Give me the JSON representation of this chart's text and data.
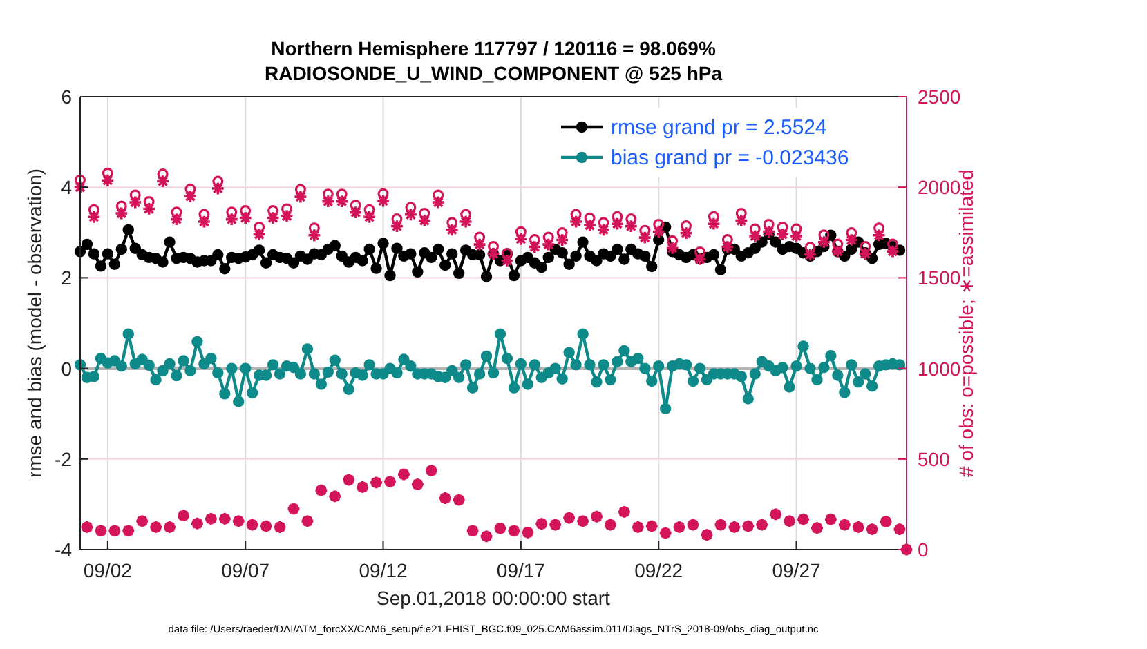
{
  "chart_data": {
    "type": "line",
    "title": "Northern Hemisphere 117797 / 120116 = 98.069%",
    "subtitle": "RADIOSONDE_U_WIND_COMPONENT @ 525 hPa",
    "xlabel": "Sep.01,2018 00:00:00 start",
    "ylabel": "rmse and bias (model - observation)",
    "y2label": "# of obs: o=possible; ∗=assimilated",
    "annotations": [
      "data file: /Users/raeder/DAI/ATM_forcXX/CAM6_setup/f.e21.FHIST_BGC.f09_025.CAM6assim.011/Diags_NTrS_2018-09/obs_diag_output.nc"
    ],
    "x": [
      "2018-09-01T00:00",
      "2018-09-01T06:00",
      "2018-09-01T12:00",
      "2018-09-01T18:00",
      "2018-09-02T00:00",
      "2018-09-02T06:00",
      "2018-09-02T12:00",
      "2018-09-02T18:00",
      "2018-09-03T00:00",
      "2018-09-03T06:00",
      "2018-09-03T12:00",
      "2018-09-03T18:00",
      "2018-09-04T00:00",
      "2018-09-04T06:00",
      "2018-09-04T12:00",
      "2018-09-04T18:00",
      "2018-09-05T00:00",
      "2018-09-05T06:00",
      "2018-09-05T12:00",
      "2018-09-05T18:00",
      "2018-09-06T00:00",
      "2018-09-06T06:00",
      "2018-09-06T12:00",
      "2018-09-06T18:00",
      "2018-09-07T00:00",
      "2018-09-07T06:00",
      "2018-09-07T12:00",
      "2018-09-07T18:00",
      "2018-09-08T00:00",
      "2018-09-08T06:00",
      "2018-09-08T12:00",
      "2018-09-08T18:00",
      "2018-09-09T00:00",
      "2018-09-09T06:00",
      "2018-09-09T12:00",
      "2018-09-09T18:00",
      "2018-09-10T00:00",
      "2018-09-10T06:00",
      "2018-09-10T12:00",
      "2018-09-10T18:00",
      "2018-09-11T00:00",
      "2018-09-11T06:00",
      "2018-09-11T12:00",
      "2018-09-11T18:00",
      "2018-09-12T00:00",
      "2018-09-12T06:00",
      "2018-09-12T12:00",
      "2018-09-12T18:00",
      "2018-09-13T00:00",
      "2018-09-13T06:00",
      "2018-09-13T12:00",
      "2018-09-13T18:00",
      "2018-09-14T00:00",
      "2018-09-14T06:00",
      "2018-09-14T12:00",
      "2018-09-14T18:00",
      "2018-09-15T00:00",
      "2018-09-15T06:00",
      "2018-09-15T12:00",
      "2018-09-15T18:00",
      "2018-09-16T00:00",
      "2018-09-16T06:00",
      "2018-09-16T12:00",
      "2018-09-16T18:00",
      "2018-09-17T00:00",
      "2018-09-17T06:00",
      "2018-09-17T12:00",
      "2018-09-17T18:00",
      "2018-09-18T00:00",
      "2018-09-18T06:00",
      "2018-09-18T12:00",
      "2018-09-18T18:00",
      "2018-09-19T00:00",
      "2018-09-19T06:00",
      "2018-09-19T12:00",
      "2018-09-19T18:00",
      "2018-09-20T00:00",
      "2018-09-20T06:00",
      "2018-09-20T12:00",
      "2018-09-20T18:00",
      "2018-09-21T00:00",
      "2018-09-21T06:00",
      "2018-09-21T12:00",
      "2018-09-21T18:00",
      "2018-09-22T00:00",
      "2018-09-22T06:00",
      "2018-09-22T12:00",
      "2018-09-22T18:00",
      "2018-09-23T00:00",
      "2018-09-23T06:00",
      "2018-09-23T12:00",
      "2018-09-23T18:00",
      "2018-09-24T00:00",
      "2018-09-24T06:00",
      "2018-09-24T12:00",
      "2018-09-24T18:00",
      "2018-09-25T00:00",
      "2018-09-25T06:00",
      "2018-09-25T12:00",
      "2018-09-25T18:00",
      "2018-09-26T00:00",
      "2018-09-26T06:00",
      "2018-09-26T12:00",
      "2018-09-26T18:00",
      "2018-09-27T00:00",
      "2018-09-27T06:00",
      "2018-09-27T12:00",
      "2018-09-27T18:00",
      "2018-09-28T00:00",
      "2018-09-28T06:00",
      "2018-09-28T12:00",
      "2018-09-28T18:00",
      "2018-09-29T00:00",
      "2018-09-29T06:00",
      "2018-09-29T12:00",
      "2018-09-29T18:00",
      "2018-09-30T00:00",
      "2018-09-30T06:00",
      "2018-09-30T12:00",
      "2018-09-30T18:00",
      "2018-10-01T00:00"
    ],
    "series": [
      {
        "name": "rmse grand pr = 2.5524",
        "marker": "circle",
        "color": "#000000",
        "values": [
          2.58,
          2.74,
          2.53,
          2.26,
          2.53,
          2.3,
          2.63,
          3.06,
          2.65,
          2.51,
          2.45,
          2.43,
          2.35,
          2.79,
          2.43,
          2.45,
          2.43,
          2.35,
          2.38,
          2.38,
          2.51,
          2.2,
          2.45,
          2.43,
          2.46,
          2.51,
          2.61,
          2.33,
          2.51,
          2.45,
          2.43,
          2.33,
          2.48,
          2.41,
          2.53,
          2.51,
          2.63,
          2.71,
          2.48,
          2.35,
          2.45,
          2.38,
          2.63,
          2.21,
          2.76,
          2.05,
          2.65,
          2.48,
          2.53,
          2.13,
          2.55,
          2.45,
          2.63,
          2.28,
          2.53,
          2.1,
          2.61,
          2.51,
          2.51,
          2.03,
          2.53,
          2.38,
          2.53,
          2.05,
          2.38,
          2.45,
          2.33,
          2.23,
          2.45,
          2.63,
          2.55,
          2.3,
          2.48,
          2.79,
          2.48,
          2.38,
          2.53,
          2.48,
          2.63,
          2.41,
          2.63,
          2.53,
          2.48,
          2.25,
          2.84,
          3.12,
          2.58,
          2.51,
          2.45,
          2.51,
          2.43,
          2.45,
          2.51,
          2.18,
          2.63,
          2.63,
          2.48,
          2.55,
          2.65,
          2.79,
          2.96,
          2.79,
          2.63,
          2.69,
          2.65,
          2.55,
          2.48,
          2.58,
          2.69,
          2.94,
          2.58,
          2.48,
          2.63,
          2.79,
          2.55,
          2.43,
          2.74,
          2.76,
          2.69,
          2.61,
          null
        ]
      },
      {
        "name": "bias grand pr = -0.023436",
        "marker": "circle",
        "color": "#0f8a8a",
        "values": [
          0.08,
          -0.2,
          -0.18,
          0.22,
          0.12,
          0.17,
          0.05,
          0.76,
          0.1,
          0.2,
          0.07,
          -0.25,
          -0.05,
          0.1,
          -0.16,
          0.17,
          -0.05,
          0.59,
          0.1,
          0.22,
          -0.1,
          -0.56,
          0.0,
          -0.73,
          0.0,
          -0.54,
          -0.15,
          -0.15,
          0.08,
          -0.12,
          0.05,
          0.02,
          -0.12,
          0.43,
          -0.12,
          -0.35,
          -0.08,
          0.18,
          -0.12,
          -0.46,
          -0.1,
          -0.15,
          0.08,
          -0.12,
          -0.12,
          0.0,
          -0.1,
          0.2,
          0.05,
          -0.12,
          -0.12,
          -0.12,
          -0.18,
          -0.2,
          -0.05,
          -0.2,
          0.08,
          -0.43,
          -0.12,
          0.27,
          -0.1,
          0.76,
          0.22,
          -0.43,
          0.1,
          -0.35,
          0.08,
          -0.2,
          -0.1,
          0.0,
          -0.23,
          0.35,
          0.08,
          0.76,
          0.08,
          -0.3,
          0.08,
          -0.25,
          0.15,
          0.39,
          0.15,
          0.22,
          0.0,
          -0.28,
          0.05,
          -0.89,
          0.05,
          0.1,
          0.08,
          -0.28,
          0.0,
          -0.25,
          -0.12,
          -0.12,
          -0.12,
          -0.12,
          -0.18,
          -0.67,
          -0.12,
          0.15,
          0.05,
          -0.05,
          0.02,
          -0.41,
          0.05,
          0.49,
          0.0,
          -0.25,
          0.02,
          0.28,
          -0.15,
          -0.53,
          0.08,
          -0.3,
          -0.12,
          -0.39,
          0.05,
          0.08,
          0.1,
          0.08,
          null
        ]
      },
      {
        "type": "scatter",
        "axis": "y2",
        "marker": "circle",
        "color": "#d4145a",
        "values": [
          2040,
          124,
          1876,
          104,
          2078,
          104,
          1896,
          104,
          1957,
          157,
          1921,
          124,
          2073,
          124,
          1863,
          188,
          1990,
          144,
          1850,
          170,
          2033,
          170,
          1863,
          157,
          1871,
          137,
          1780,
          129,
          1871,
          124,
          1881,
          225,
          1987,
          157,
          1775,
          327,
          1962,
          294,
          1962,
          385,
          1901,
          345,
          1876,
          370,
          1964,
          375,
          1825,
          415,
          1889,
          360,
          1856,
          436,
          1957,
          284,
          1805,
          274,
          1850,
          104,
          1724,
          73,
          1673,
          117,
          1635,
          104,
          1754,
          94,
          1711,
          142,
          1724,
          137,
          1749,
          175,
          1850,
          157,
          1830,
          182,
          1805,
          137,
          1838,
          208,
          1825,
          124,
          1762,
          129,
          1795,
          91,
          1704,
          124,
          1787,
          137,
          1643,
          81,
          1838,
          137,
          1711,
          124,
          1856,
          129,
          1770,
          137,
          1795,
          195,
          1780,
          157,
          1770,
          167,
          1668,
          119,
          1737,
          167,
          1686,
          137,
          1749,
          124,
          1673,
          112,
          1775,
          154,
          1686,
          112,
          0
        ]
      },
      {
        "type": "scatter",
        "axis": "y2",
        "marker": "cross",
        "color": "#d4145a",
        "values": [
          2000,
          124,
          1836,
          104,
          2038,
          104,
          1856,
          104,
          1917,
          157,
          1881,
          124,
          2033,
          124,
          1823,
          188,
          1950,
          144,
          1810,
          170,
          1993,
          170,
          1823,
          157,
          1831,
          137,
          1740,
          129,
          1831,
          124,
          1841,
          225,
          1947,
          157,
          1735,
          327,
          1922,
          294,
          1922,
          385,
          1861,
          345,
          1836,
          370,
          1924,
          375,
          1785,
          415,
          1849,
          360,
          1816,
          436,
          1917,
          284,
          1765,
          274,
          1810,
          104,
          1684,
          73,
          1633,
          117,
          1595,
          104,
          1714,
          94,
          1671,
          142,
          1684,
          137,
          1709,
          175,
          1810,
          157,
          1790,
          182,
          1765,
          137,
          1798,
          208,
          1785,
          124,
          1722,
          129,
          1755,
          91,
          1664,
          124,
          1747,
          137,
          1603,
          81,
          1798,
          137,
          1671,
          124,
          1816,
          129,
          1730,
          137,
          1755,
          195,
          1740,
          157,
          1730,
          167,
          1628,
          119,
          1697,
          167,
          1646,
          137,
          1709,
          124,
          1633,
          112,
          1735,
          154,
          1646,
          112,
          0
        ]
      }
    ],
    "xlim": [
      "2018-09-01T00:00",
      "2018-10-01T00:00"
    ],
    "xticks": [
      {
        "value": "2018-09-02",
        "label": "09/02"
      },
      {
        "value": "2018-09-07",
        "label": "09/07"
      },
      {
        "value": "2018-09-12",
        "label": "09/12"
      },
      {
        "value": "2018-09-17",
        "label": "09/17"
      },
      {
        "value": "2018-09-22",
        "label": "09/22"
      },
      {
        "value": "2018-09-27",
        "label": "09/27"
      }
    ],
    "ylim": [
      -4,
      6
    ],
    "yticks": [
      -4,
      -2,
      0,
      2,
      4,
      6
    ],
    "y2lim": [
      0,
      2500
    ],
    "y2ticks": [
      0,
      500,
      1000,
      1500,
      2000,
      2500
    ],
    "ref_lines": [
      {
        "axis": "y",
        "value": 0,
        "color": "#b4b4b4"
      }
    ],
    "grid": true,
    "legend": "top right"
  }
}
